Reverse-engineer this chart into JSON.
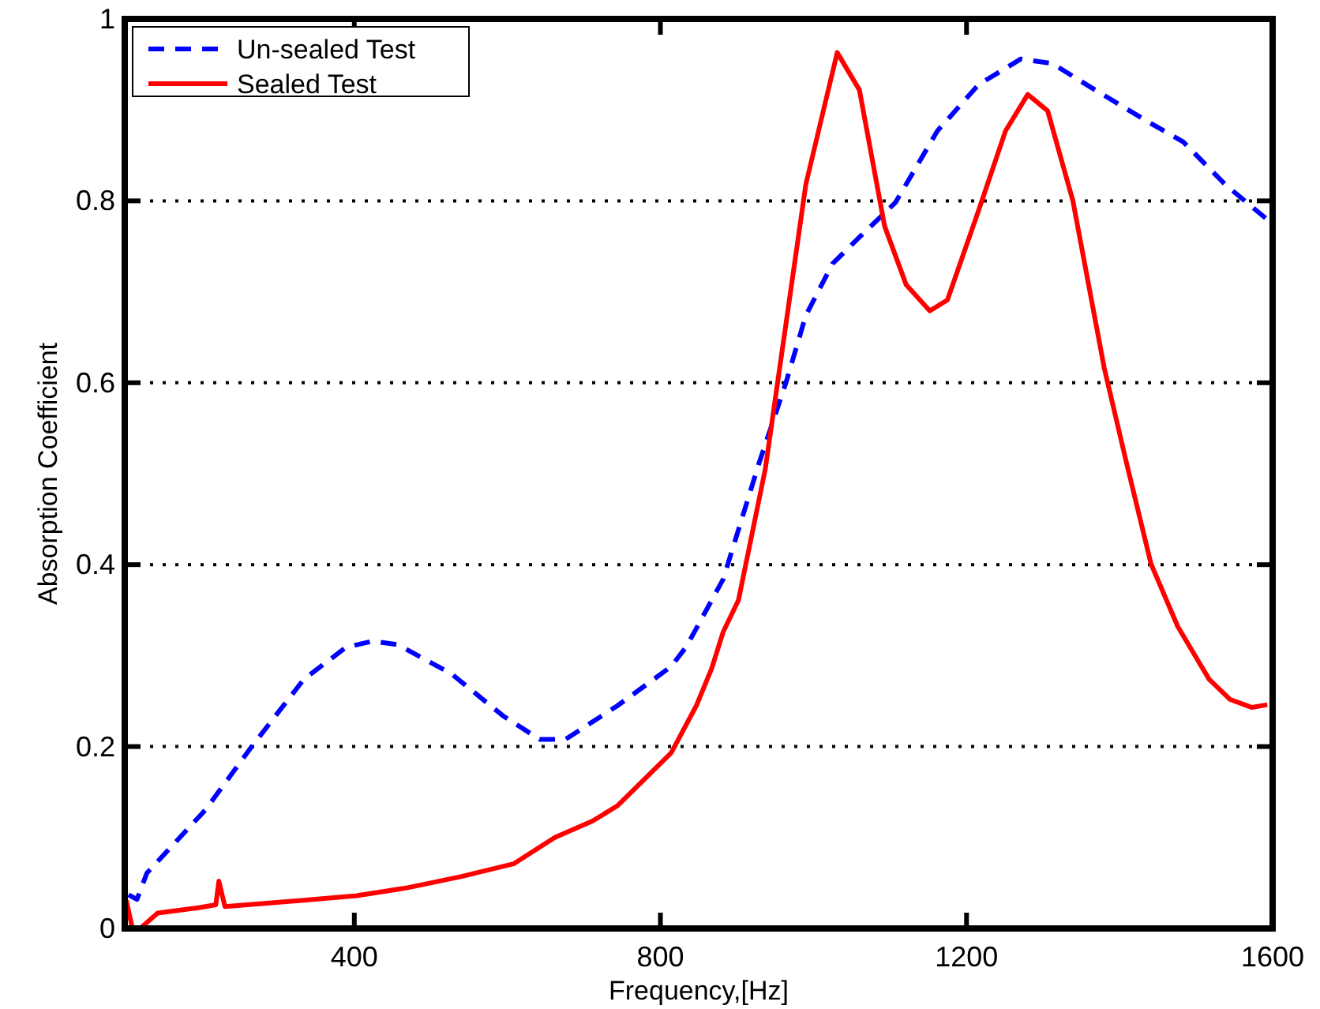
{
  "chart_data": {
    "type": "line",
    "xlabel": "Frequency,[Hz]",
    "ylabel": "Absorption Coefficient",
    "xlim": [
      100,
      1600
    ],
    "ylim": [
      0,
      1
    ],
    "xticks": [
      400,
      800,
      1200,
      1600
    ],
    "yticks": [
      0,
      0.2,
      0.4,
      0.6,
      0.8,
      1
    ],
    "grid": "y",
    "legend": "top left",
    "series": [
      {
        "name": "Un-sealed Test",
        "color": "#0000ff",
        "line_style": "dashed",
        "x": [
          105,
          116,
          129,
          205,
          266,
          334,
          389,
          424,
          457,
          527,
          594,
          642,
          676,
          744,
          814,
          834,
          882,
          929,
          964,
          990,
          1025,
          1060,
          1107,
          1162,
          1216,
          1271,
          1312,
          1368,
          1435,
          1483,
          1538,
          1595
        ],
        "values": [
          0.037,
          0.032,
          0.061,
          0.13,
          0.2,
          0.274,
          0.309,
          0.316,
          0.312,
          0.28,
          0.234,
          0.208,
          0.208,
          0.245,
          0.288,
          0.31,
          0.384,
          0.512,
          0.6,
          0.674,
          0.731,
          0.76,
          0.798,
          0.877,
          0.928,
          0.956,
          0.951,
          0.922,
          0.888,
          0.865,
          0.818,
          0.778
        ]
      },
      {
        "name": "Sealed Test",
        "color": "#ff0000",
        "line_style": "solid",
        "x": [
          102,
          110,
          120,
          143,
          198,
          219,
          223,
          231,
          334,
          403,
          471,
          539,
          608,
          662,
          711,
          744,
          814,
          847,
          867,
          882,
          902,
          937,
          990,
          1031,
          1060,
          1093,
          1121,
          1152,
          1175,
          1216,
          1251,
          1280,
          1306,
          1339,
          1380,
          1409,
          1441,
          1476,
          1517,
          1544,
          1573,
          1593
        ],
        "values": [
          0.031,
          0,
          0,
          0.017,
          0.023,
          0.026,
          0.052,
          0.024,
          0.031,
          0.036,
          0.045,
          0.057,
          0.071,
          0.1,
          0.118,
          0.135,
          0.193,
          0.245,
          0.286,
          0.326,
          0.361,
          0.505,
          0.818,
          0.963,
          0.922,
          0.772,
          0.708,
          0.679,
          0.691,
          0.79,
          0.877,
          0.917,
          0.899,
          0.8,
          0.616,
          0.512,
          0.401,
          0.332,
          0.274,
          0.252,
          0.243,
          0.246
        ]
      }
    ]
  }
}
